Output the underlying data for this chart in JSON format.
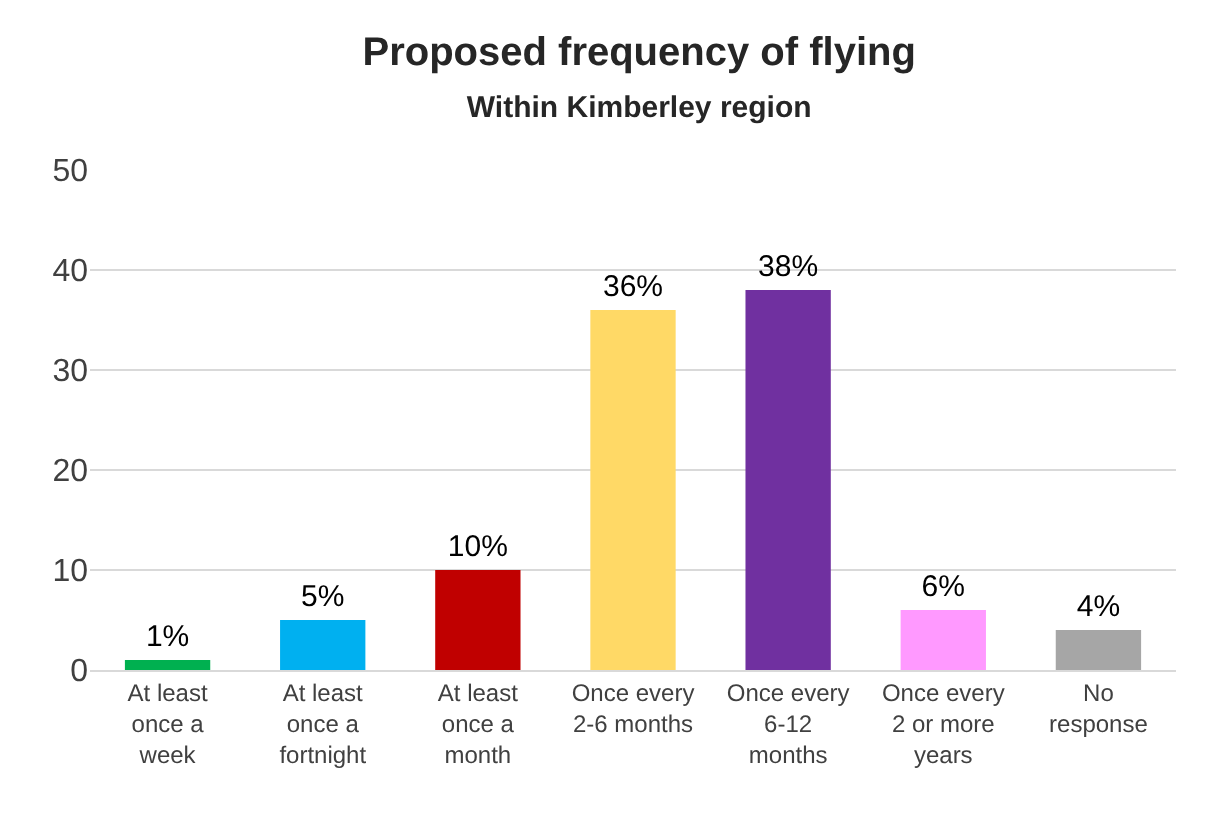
{
  "chart_data": {
    "type": "bar",
    "title": "Proposed frequency of flying",
    "subtitle": "Within Kimberley region",
    "categories": [
      "At least once a week",
      "At least once a fortnight",
      "At least once a month",
      "Once every 2-6 months",
      "Once every 6-12 months",
      "Once every 2 or more years",
      "No response"
    ],
    "values": [
      1,
      5,
      10,
      36,
      38,
      6,
      4
    ],
    "colors": [
      "#00b050",
      "#00b0f0",
      "#c00000",
      "#ffd966",
      "#7030a0",
      "#ff99ff",
      "#a6a6a6"
    ],
    "value_labels": [
      "1%",
      "5%",
      "10%",
      "36%",
      "38%",
      "6%",
      "4%"
    ],
    "ylim": [
      0,
      50
    ],
    "yticks": [
      0,
      10,
      20,
      30,
      40,
      50
    ],
    "grid": "y"
  }
}
